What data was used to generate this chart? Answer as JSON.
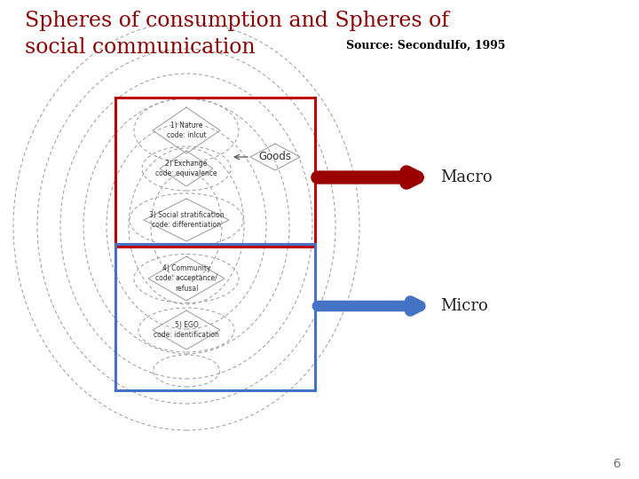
{
  "title_line1": "Spheres of consumption and Spheres of",
  "title_line2": "social communication",
  "source_text": "Source: Secondulfo, 1995",
  "title_color": "#8B0000",
  "source_color": "#000000",
  "bg_color": "#ffffff",
  "page_number": "6",
  "macro_label": "Macro",
  "micro_label": "Micro",
  "macro_arrow_color": "#9B0000",
  "micro_arrow_color": "#4472C4",
  "red_box_color": "#C00000",
  "blue_box_color": "#4472C4",
  "diagram_color": "#999999",
  "label1": "1) Nature\ncode: inlcut",
  "label2": "2) Exchange\ncode: equivalence",
  "label3": "3) Social stratification\ncode: differentiation",
  "label4": "4) Community\ncode: acceptance/\nrefusal",
  "label5": "5) EGO\ncode: identification",
  "label_goods": "Goods"
}
